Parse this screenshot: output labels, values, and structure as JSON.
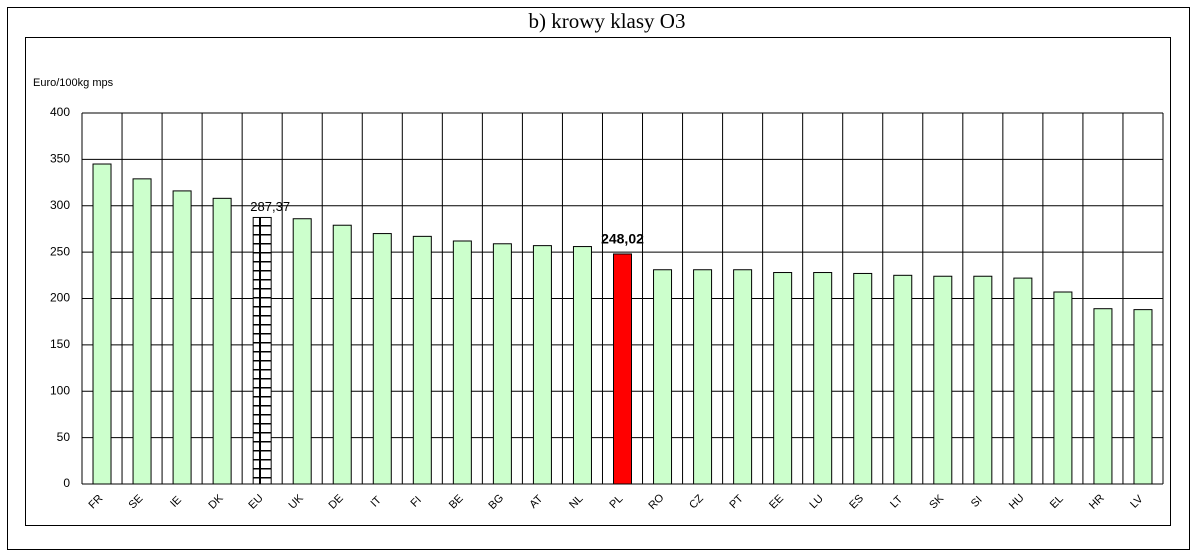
{
  "chart_data": {
    "type": "bar",
    "title": "b) krowy klasy O3",
    "y_label": "Euro/100kg mps",
    "categories": [
      "FR",
      "SE",
      "IE",
      "DK",
      "EU",
      "UK",
      "DE",
      "IT",
      "FI",
      "BE",
      "BG",
      "AT",
      "NL",
      "PL",
      "RO",
      "CZ",
      "PT",
      "EE",
      "LU",
      "ES",
      "LT",
      "SK",
      "SI",
      "HU",
      "EL",
      "HR",
      "LV"
    ],
    "values": [
      345,
      329,
      316,
      308,
      287.37,
      286,
      279,
      270,
      267,
      262,
      259,
      257,
      256,
      248.02,
      231,
      231,
      231,
      228,
      228,
      227,
      225,
      224,
      224,
      222,
      207,
      189,
      188
    ],
    "value_labels": [
      null,
      null,
      null,
      null,
      "287,37",
      null,
      null,
      null,
      null,
      null,
      null,
      null,
      null,
      "248,02",
      null,
      null,
      null,
      null,
      null,
      null,
      null,
      null,
      null,
      null,
      null,
      null,
      null
    ],
    "colors": [
      "#ccffcc",
      "#ccffcc",
      "#ccffcc",
      "#ccffcc",
      "#ffffff",
      "#ccffcc",
      "#ccffcc",
      "#ccffcc",
      "#ccffcc",
      "#ccffcc",
      "#ccffcc",
      "#ccffcc",
      "#ccffcc",
      "#ff0000",
      "#ccffcc",
      "#ccffcc",
      "#ccffcc",
      "#ccffcc",
      "#ccffcc",
      "#ccffcc",
      "#ccffcc",
      "#ccffcc",
      "#ccffcc",
      "#ccffcc",
      "#ccffcc",
      "#ccffcc",
      "#ccffcc"
    ],
    "patterned_categories": [
      "EU"
    ],
    "ylim": [
      0,
      400
    ],
    "yticks": [
      0,
      50,
      100,
      150,
      200,
      250,
      300,
      350,
      400
    ],
    "grid": true
  }
}
